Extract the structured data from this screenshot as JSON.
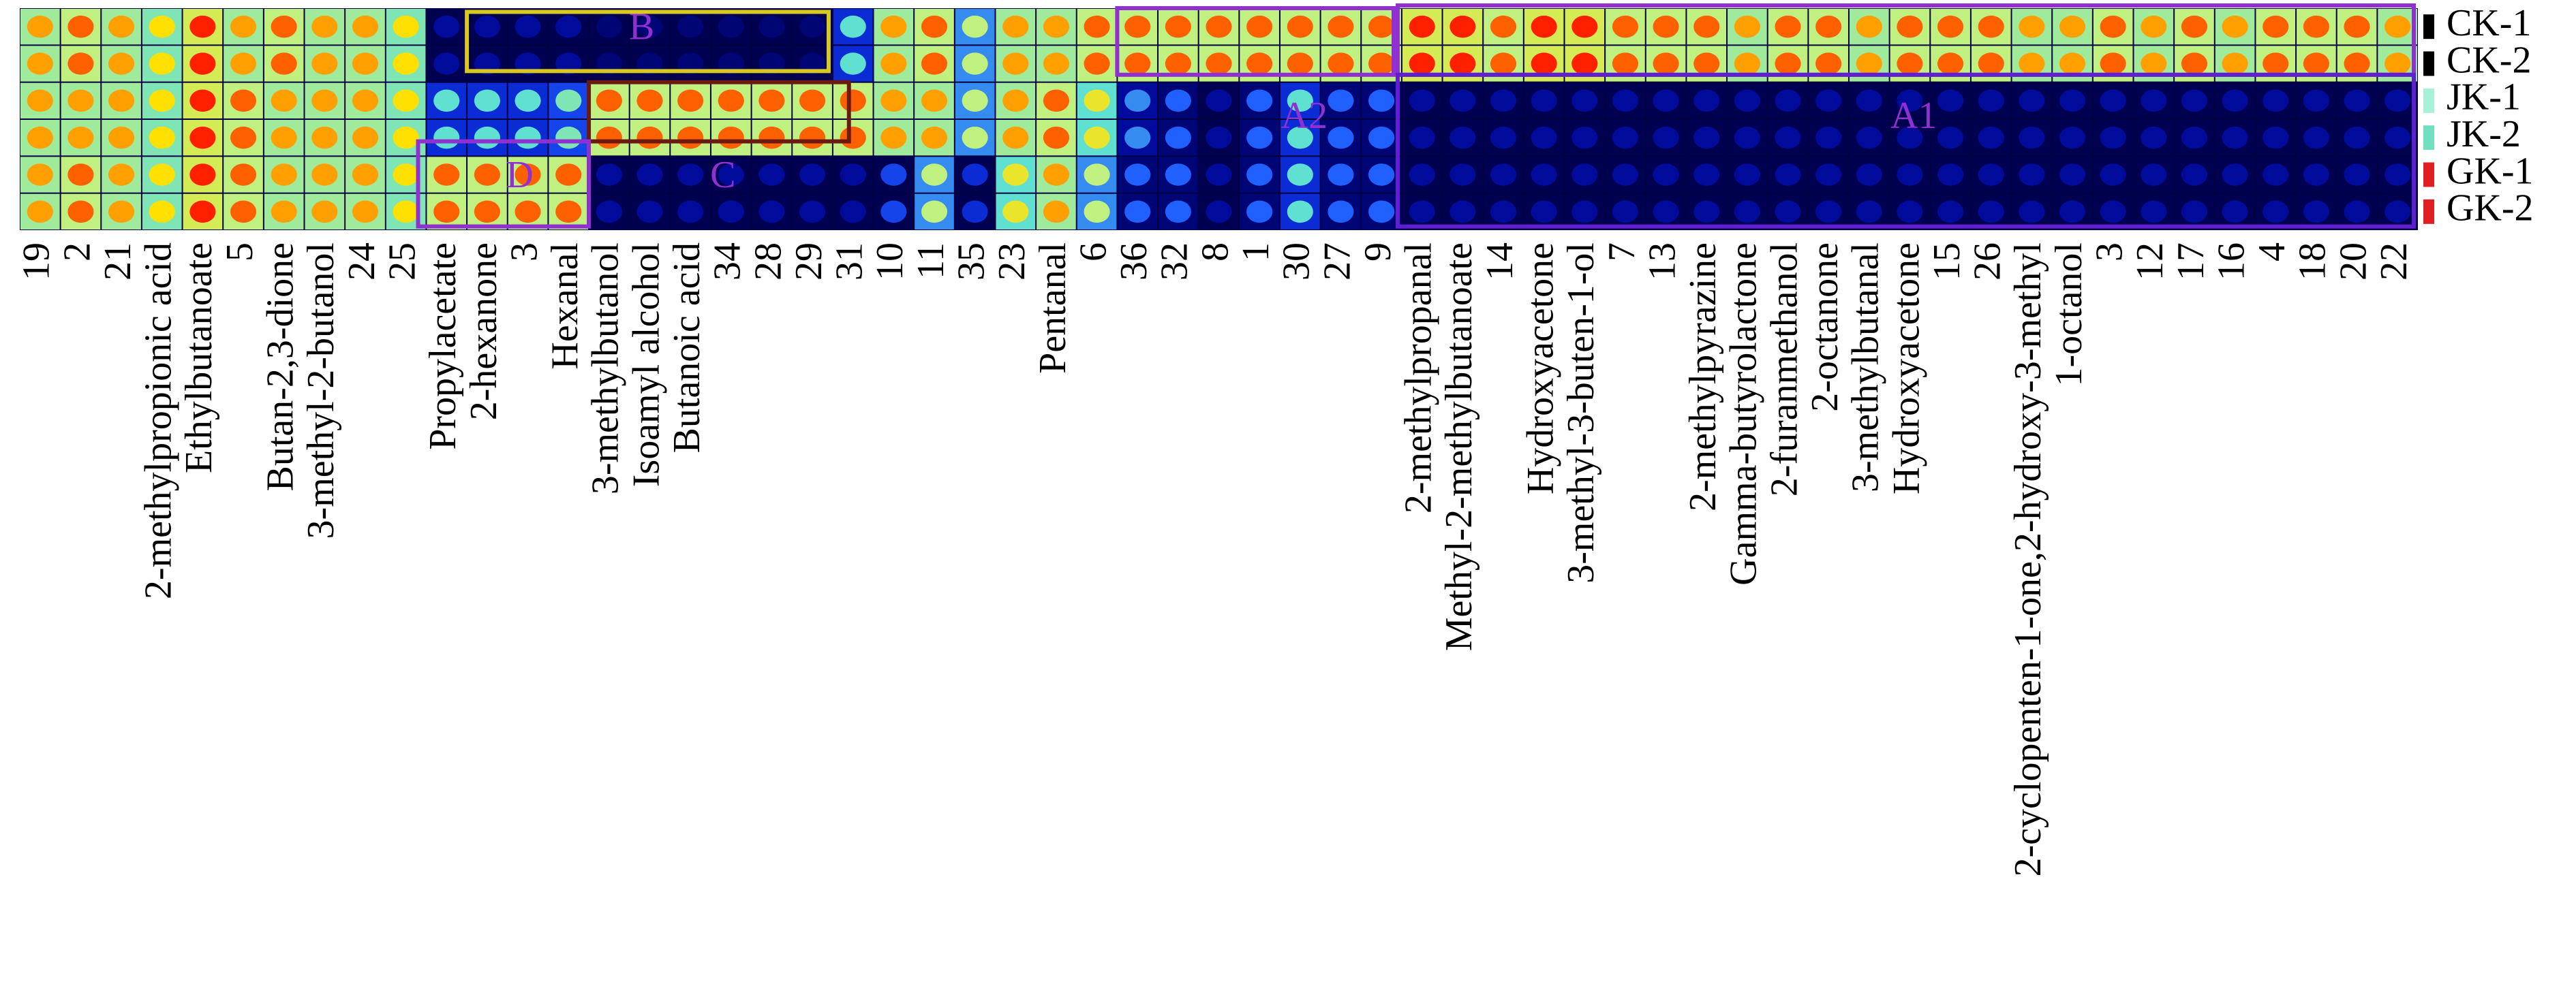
{
  "chart_data": {
    "type": "heatmap",
    "categories": [
      "19",
      "2",
      "21",
      "2-methylpropionic acid",
      "Ethylbutanoate",
      "5",
      "Butan-2,3-dione",
      "3-methyl-2-butanol",
      "24",
      "25",
      "Propylacetate",
      "2-hexanone",
      "3",
      "Hexanal",
      "3-methylbutanol",
      "Isoamyl alcohol",
      "Butanoic acid",
      "34",
      "28",
      "29",
      "31",
      "10",
      "11",
      "35",
      "23",
      "Pentanal",
      "6",
      "36",
      "32",
      "8",
      "1",
      "30",
      "27",
      "9",
      "2-methylpropanal",
      "Methyl-2-methylbutanoate",
      "14",
      "Hydroxyacetone",
      "3-methyl-3-buten-1-ol",
      "7",
      "13",
      "2-methylpyrazine",
      "Gamma-butyrolactone",
      "2-furanmethanol",
      "2-octanone",
      "3-methylbutanal",
      "Hydroxyacetone",
      "15",
      "26",
      "2-cyclopenten-1-one,2-hydroxy-3-methyl",
      "1-octanol",
      "3",
      "12",
      "17",
      "16",
      "4",
      "18",
      "20",
      "22"
    ],
    "series": [
      {
        "name": "CK-1",
        "color": "#000000",
        "values": [
          0.8,
          0.85,
          0.8,
          0.75,
          0.9,
          0.8,
          0.85,
          0.8,
          0.8,
          0.75,
          0.1,
          0.1,
          0.1,
          0.1,
          0.05,
          0.05,
          0.05,
          0.05,
          0.05,
          0.05,
          0.45,
          0.8,
          0.85,
          0.6,
          0.8,
          0.8,
          0.85,
          0.85,
          0.85,
          0.85,
          0.85,
          0.85,
          0.85,
          0.85,
          0.9,
          0.9,
          0.85,
          0.9,
          0.9,
          0.85,
          0.85,
          0.85,
          0.8,
          0.85,
          0.85,
          0.8,
          0.85,
          0.85,
          0.85,
          0.8,
          0.8,
          0.85,
          0.8,
          0.85,
          0.8,
          0.85,
          0.85,
          0.85,
          0.8
        ]
      },
      {
        "name": "CK-2",
        "color": "#000000",
        "values": [
          0.8,
          0.85,
          0.8,
          0.75,
          0.9,
          0.8,
          0.85,
          0.8,
          0.8,
          0.75,
          0.1,
          0.1,
          0.1,
          0.1,
          0.05,
          0.05,
          0.05,
          0.05,
          0.05,
          0.05,
          0.45,
          0.8,
          0.85,
          0.6,
          0.8,
          0.8,
          0.85,
          0.85,
          0.85,
          0.85,
          0.85,
          0.85,
          0.85,
          0.85,
          0.9,
          0.9,
          0.85,
          0.9,
          0.9,
          0.85,
          0.85,
          0.85,
          0.8,
          0.85,
          0.85,
          0.8,
          0.85,
          0.85,
          0.85,
          0.8,
          0.8,
          0.85,
          0.8,
          0.85,
          0.8,
          0.85,
          0.85,
          0.85,
          0.8
        ]
      },
      {
        "name": "JK-1",
        "color": "#a8f0d8",
        "values": [
          0.8,
          0.8,
          0.8,
          0.75,
          0.9,
          0.85,
          0.8,
          0.8,
          0.8,
          0.75,
          0.45,
          0.45,
          0.45,
          0.5,
          0.85,
          0.85,
          0.85,
          0.85,
          0.85,
          0.85,
          0.85,
          0.8,
          0.8,
          0.6,
          0.8,
          0.85,
          0.7,
          0.35,
          0.3,
          0.1,
          0.3,
          0.45,
          0.3,
          0.3,
          0.1,
          0.1,
          0.1,
          0.1,
          0.1,
          0.1,
          0.1,
          0.1,
          0.1,
          0.1,
          0.1,
          0.1,
          0.1,
          0.1,
          0.1,
          0.1,
          0.1,
          0.1,
          0.1,
          0.1,
          0.1,
          0.1,
          0.1,
          0.1,
          0.1
        ]
      },
      {
        "name": "JK-2",
        "color": "#70e0c0",
        "values": [
          0.8,
          0.8,
          0.8,
          0.75,
          0.9,
          0.85,
          0.8,
          0.8,
          0.8,
          0.75,
          0.45,
          0.45,
          0.45,
          0.5,
          0.85,
          0.85,
          0.85,
          0.85,
          0.85,
          0.85,
          0.85,
          0.8,
          0.8,
          0.6,
          0.8,
          0.85,
          0.7,
          0.35,
          0.3,
          0.1,
          0.3,
          0.45,
          0.3,
          0.3,
          0.1,
          0.1,
          0.1,
          0.1,
          0.1,
          0.1,
          0.1,
          0.1,
          0.1,
          0.1,
          0.1,
          0.1,
          0.1,
          0.1,
          0.1,
          0.1,
          0.1,
          0.1,
          0.1,
          0.1,
          0.1,
          0.1,
          0.1,
          0.1,
          0.1
        ]
      },
      {
        "name": "GK-1",
        "color": "#e02020",
        "values": [
          0.8,
          0.85,
          0.8,
          0.75,
          0.9,
          0.85,
          0.8,
          0.8,
          0.8,
          0.75,
          0.85,
          0.85,
          0.85,
          0.85,
          0.1,
          0.1,
          0.1,
          0.1,
          0.1,
          0.1,
          0.1,
          0.25,
          0.6,
          0.2,
          0.7,
          0.8,
          0.6,
          0.3,
          0.3,
          0.1,
          0.3,
          0.45,
          0.3,
          0.3,
          0.1,
          0.1,
          0.1,
          0.1,
          0.1,
          0.1,
          0.1,
          0.1,
          0.1,
          0.1,
          0.1,
          0.1,
          0.1,
          0.1,
          0.1,
          0.1,
          0.1,
          0.1,
          0.1,
          0.1,
          0.1,
          0.1,
          0.1,
          0.1,
          0.1
        ]
      },
      {
        "name": "GK-2",
        "color": "#e02020",
        "values": [
          0.8,
          0.85,
          0.8,
          0.75,
          0.9,
          0.85,
          0.8,
          0.8,
          0.8,
          0.75,
          0.85,
          0.85,
          0.85,
          0.85,
          0.1,
          0.1,
          0.1,
          0.1,
          0.1,
          0.1,
          0.1,
          0.25,
          0.6,
          0.2,
          0.7,
          0.8,
          0.6,
          0.3,
          0.3,
          0.1,
          0.3,
          0.45,
          0.3,
          0.3,
          0.1,
          0.1,
          0.1,
          0.1,
          0.1,
          0.1,
          0.1,
          0.1,
          0.1,
          0.1,
          0.1,
          0.1,
          0.1,
          0.1,
          0.1,
          0.1,
          0.1,
          0.1,
          0.1,
          0.1,
          0.1,
          0.1,
          0.1,
          0.1,
          0.1
        ]
      }
    ],
    "annotations": [
      "B",
      "C",
      "D",
      "A2",
      "A1"
    ]
  }
}
